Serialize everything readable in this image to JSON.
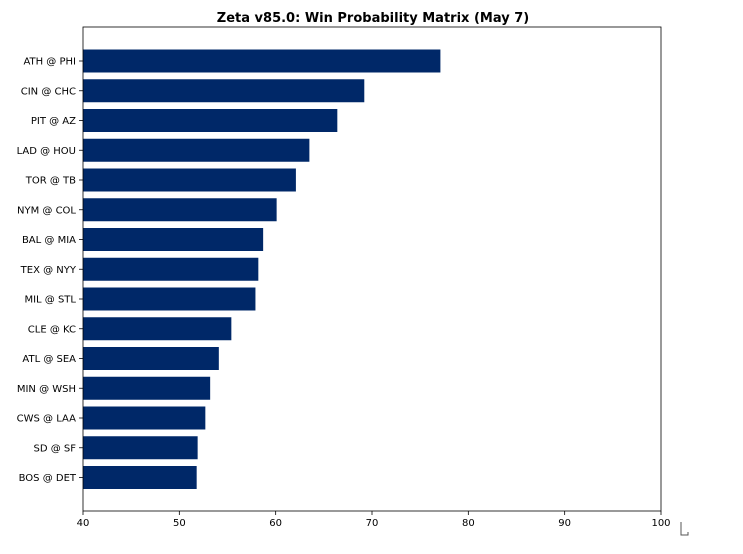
{
  "chart_data": {
    "type": "bar",
    "orientation": "horizontal",
    "title": "Zeta v85.0: Win Probability Matrix (May 7)",
    "xlabel": "",
    "ylabel": "",
    "xlim": [
      40,
      100
    ],
    "xticks": [
      40,
      50,
      60,
      70,
      80,
      90,
      100
    ],
    "grid": false,
    "bar_color": "#002868",
    "categories": [
      "ATH @ PHI",
      "CIN @ CHC",
      "PIT @ AZ",
      "LAD @ HOU",
      "TOR @ TB",
      "NYM @ COL",
      "BAL @ MIA",
      "TEX @ NYY",
      "MIL @ STL",
      "CLE @ KC",
      "ATL @ SEA",
      "MIN @ WSH",
      "CWS @ LAA",
      "SD @ SF",
      "BOS @ DET"
    ],
    "values": [
      77.1,
      69.2,
      66.4,
      63.5,
      62.1,
      60.1,
      58.7,
      58.2,
      57.9,
      55.4,
      54.1,
      53.2,
      52.7,
      51.9,
      51.8
    ]
  }
}
